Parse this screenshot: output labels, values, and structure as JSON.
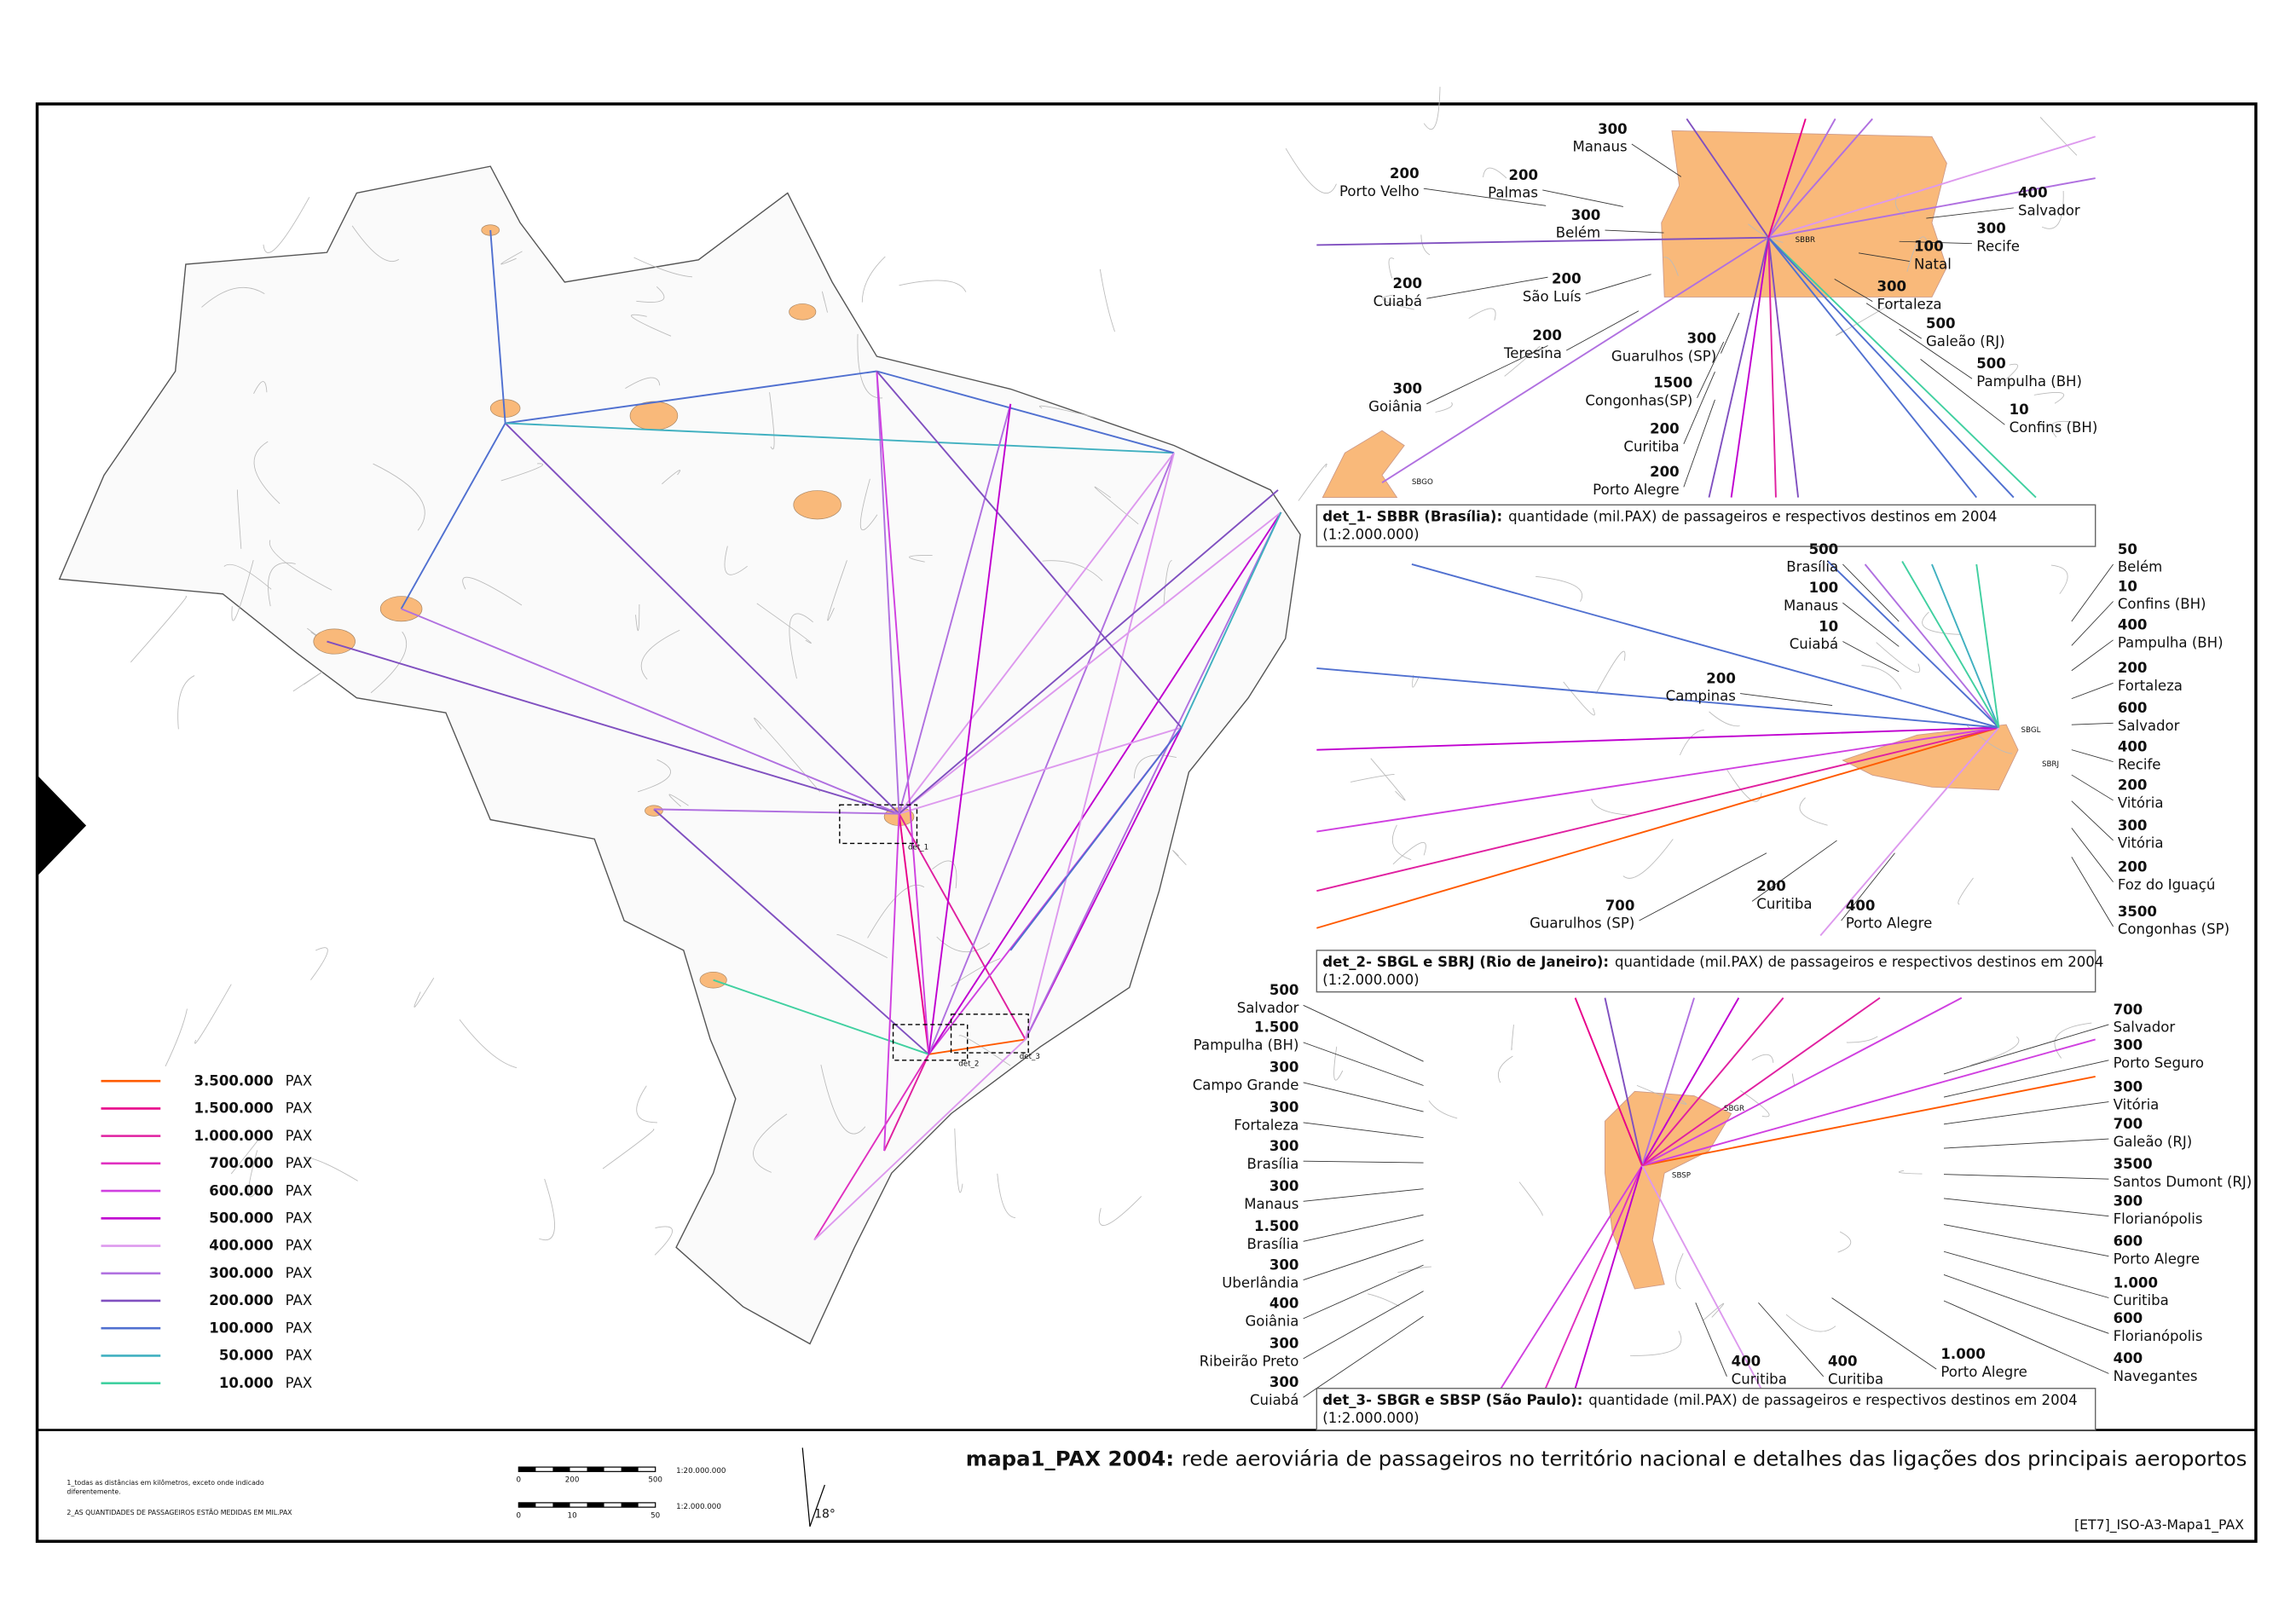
{
  "legend": [
    {
      "label": "3.500.000",
      "unit": "PAX"
    },
    {
      "label": "1.500.000",
      "unit": "PAX"
    },
    {
      "label": "1.000.000",
      "unit": "PAX"
    },
    {
      "label": "700.000",
      "unit": "PAX"
    },
    {
      "label": "600.000",
      "unit": "PAX"
    },
    {
      "label": "500.000",
      "unit": "PAX"
    },
    {
      "label": "400.000",
      "unit": "PAX"
    },
    {
      "label": "300.000",
      "unit": "PAX"
    },
    {
      "label": "200.000",
      "unit": "PAX"
    },
    {
      "label": "100.000",
      "unit": "PAX"
    },
    {
      "label": "50.000",
      "unit": "PAX"
    },
    {
      "label": "10.000",
      "unit": "PAX"
    }
  ],
  "map_labels": [
    "det_1",
    "det_2",
    "det_3"
  ],
  "details": [
    {
      "caption_bold": "det_1- SBBR (Brasília):",
      "caption": "quantidade (mil.PAX) de passageiros e respectivos destinos em 2004",
      "scale": "(1:2.000.000)",
      "codes": [
        "SBBR",
        "SBGO"
      ],
      "labels": [
        {
          "value": "300",
          "name": "Manaus"
        },
        {
          "value": "200",
          "name": "Porto Velho"
        },
        {
          "value": "200",
          "name": "Palmas"
        },
        {
          "value": "300",
          "name": "Belém"
        },
        {
          "value": "200",
          "name": "Cuiabá"
        },
        {
          "value": "200",
          "name": "São Luís"
        },
        {
          "value": "200",
          "name": "Teresina"
        },
        {
          "value": "300",
          "name": "Goiânia"
        },
        {
          "value": "300",
          "name": "Guarulhos (SP)"
        },
        {
          "value": "1500",
          "name": "Congonhas(SP)"
        },
        {
          "value": "200",
          "name": "Curitiba"
        },
        {
          "value": "200",
          "name": "Porto Alegre"
        },
        {
          "value": "400",
          "name": "Salvador"
        },
        {
          "value": "300",
          "name": "Recife"
        },
        {
          "value": "100",
          "name": "Natal"
        },
        {
          "value": "300",
          "name": "Fortaleza"
        },
        {
          "value": "500",
          "name": "Galeão (RJ)"
        },
        {
          "value": "500",
          "name": "Pampulha (BH)"
        },
        {
          "value": "10",
          "name": "Confins (BH)"
        }
      ]
    },
    {
      "caption_bold": "det_2- SBGL e SBRJ (Rio de Janeiro):",
      "caption": "quantidade (mil.PAX) de passageiros e respectivos destinos em 2004",
      "scale": "(1:2.000.000)",
      "codes": [
        "SBGL",
        "SBRJ"
      ],
      "labels": [
        {
          "value": "500",
          "name": "Brasília"
        },
        {
          "value": "100",
          "name": "Manaus"
        },
        {
          "value": "10",
          "name": "Cuiabá"
        },
        {
          "value": "200",
          "name": "Campinas"
        },
        {
          "value": "50",
          "name": "Belém"
        },
        {
          "value": "10",
          "name": "Confins (BH)"
        },
        {
          "value": "400",
          "name": "Pampulha (BH)"
        },
        {
          "value": "200",
          "name": "Fortaleza"
        },
        {
          "value": "600",
          "name": "Salvador"
        },
        {
          "value": "400",
          "name": "Recife"
        },
        {
          "value": "200",
          "name": "Vitória"
        },
        {
          "value": "300",
          "name": "Vitória"
        },
        {
          "value": "200",
          "name": "Foz do Iguaçú"
        },
        {
          "value": "3500",
          "name": "Congonhas (SP)"
        },
        {
          "value": "700",
          "name": "Guarulhos (SP)"
        },
        {
          "value": "200",
          "name": "Curitiba"
        },
        {
          "value": "400",
          "name": "Porto Alegre"
        }
      ]
    },
    {
      "caption_bold": "det_3- SBGR e SBSP (São Paulo):",
      "caption": "quantidade (mil.PAX) de passageiros e respectivos destinos em 2004",
      "scale": "(1:2.000.000)",
      "codes": [
        "SBGR",
        "SBSP"
      ],
      "labels": [
        {
          "value": "500",
          "name": "Salvador"
        },
        {
          "value": "1.500",
          "name": "Pampulha (BH)"
        },
        {
          "value": "300",
          "name": "Campo Grande"
        },
        {
          "value": "300",
          "name": "Fortaleza"
        },
        {
          "value": "300",
          "name": "Brasília"
        },
        {
          "value": "300",
          "name": "Manaus"
        },
        {
          "value": "1.500",
          "name": "Brasília"
        },
        {
          "value": "300",
          "name": "Uberlândia"
        },
        {
          "value": "400",
          "name": "Goiânia"
        },
        {
          "value": "300",
          "name": "Ribeirão Preto"
        },
        {
          "value": "300",
          "name": "Cuiabá"
        },
        {
          "value": "700",
          "name": "Salvador"
        },
        {
          "value": "300",
          "name": "Porto Seguro"
        },
        {
          "value": "300",
          "name": "Vitória"
        },
        {
          "value": "700",
          "name": "Galeão (RJ)"
        },
        {
          "value": "3500",
          "name": "Santos Dumont (RJ)"
        },
        {
          "value": "300",
          "name": "Florianópolis"
        },
        {
          "value": "600",
          "name": "Porto Alegre"
        },
        {
          "value": "1.000",
          "name": "Curitiba"
        },
        {
          "value": "600",
          "name": "Florianópolis"
        },
        {
          "value": "400",
          "name": "Navegantes"
        },
        {
          "value": "400",
          "name": "Curitiba"
        },
        {
          "value": "400",
          "name": "Curitiba"
        },
        {
          "value": "1.000",
          "name": "Porto Alegre"
        }
      ]
    }
  ],
  "footer": {
    "title_bold": "mapa1_PAX 2004:",
    "title": "rede aeroviária de passageiros no território nacional e detalhes das ligações dos principais aeroportos",
    "notes": [
      "1_todas as distâncias em kilômetros, exceto onde indicado",
      "diferentemente.",
      "2_AS QUANTIDADES DE PASSAGEIROS ESTÃO MEDIDAS EM MIL.PAX"
    ],
    "scale_bars": [
      {
        "ticks": [
          "0",
          "200",
          "500"
        ],
        "ratio": "1:20.000.000"
      },
      {
        "ticks": [
          "0",
          "10",
          "50"
        ],
        "ratio": "1:2.000.000"
      }
    ],
    "north": "18°",
    "code": "[ET7]_ISO-A3-Mapa1_PAX"
  }
}
